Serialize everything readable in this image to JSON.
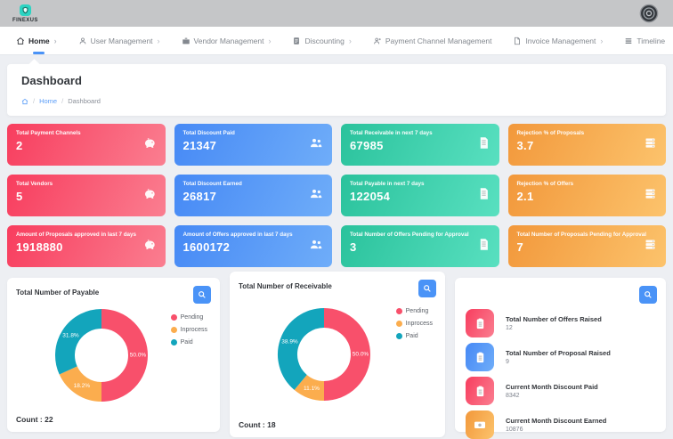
{
  "topbar": {
    "logo_text": "FINEXUS"
  },
  "nav": {
    "items": [
      {
        "label": "Home",
        "active": true
      },
      {
        "label": "User Management"
      },
      {
        "label": "Vendor Management"
      },
      {
        "label": "Discounting"
      },
      {
        "label": "Payment Channel Management"
      },
      {
        "label": "Invoice Management"
      },
      {
        "label": "Timeline"
      }
    ]
  },
  "page": {
    "title": "Dashboard",
    "breadcrumb_home": "Home",
    "breadcrumb_current": "Dashboard"
  },
  "stat_cards": [
    {
      "title": "Total Payment Channels",
      "value": "2",
      "color": "pink",
      "icon": "piggy-bank-icon"
    },
    {
      "title": "Total Discount Paid",
      "value": "21347",
      "color": "blue",
      "icon": "users-icon"
    },
    {
      "title": "Total Receivable in next 7 days",
      "value": "67985",
      "color": "green",
      "icon": "file-invoice-icon"
    },
    {
      "title": "Rejection % of Proposals",
      "value": "3.7",
      "color": "orange",
      "icon": "server-list-icon"
    },
    {
      "title": "Total Vendors",
      "value": "5",
      "color": "pink",
      "icon": "piggy-bank-icon"
    },
    {
      "title": "Total Discount Earned",
      "value": "26817",
      "color": "blue",
      "icon": "users-icon"
    },
    {
      "title": "Total Payable in next 7 days",
      "value": "122054",
      "color": "green",
      "icon": "file-invoice-icon"
    },
    {
      "title": "Rejection % of Offers",
      "value": "2.1",
      "color": "orange",
      "icon": "server-list-icon"
    },
    {
      "title": "Amount of Proposals approved in last 7 days",
      "value": "1918880",
      "color": "pink",
      "icon": "piggy-bank-icon"
    },
    {
      "title": "Amount of Offers approved in last 7 days",
      "value": "1600172",
      "color": "blue",
      "icon": "users-icon"
    },
    {
      "title": "Total Number of Offers Pending for Approval",
      "value": "3",
      "color": "green",
      "icon": "file-invoice-icon"
    },
    {
      "title": "Total Number of Proposals Pending for Approval",
      "value": "7",
      "color": "orange",
      "icon": "server-list-icon"
    }
  ],
  "chart_data": [
    {
      "type": "pie",
      "donut": true,
      "title": "Total Number of Payable",
      "labels": [
        "Pending",
        "Inprocess",
        "Paid"
      ],
      "values": [
        11,
        4,
        7
      ],
      "pct": [
        50.0,
        18.2,
        31.8
      ],
      "pct_labels": [
        "50.0%",
        "18.2%",
        "31.8%"
      ],
      "colors": [
        "#F8506B",
        "#FBAD4E",
        "#13A5BC"
      ],
      "count": 22,
      "count_label": "Count : 22",
      "legend_position": "right"
    },
    {
      "type": "pie",
      "donut": true,
      "title": "Total Number of Receivable",
      "labels": [
        "Pending",
        "Inprocess",
        "Paid"
      ],
      "values": [
        9,
        2,
        7
      ],
      "pct": [
        50.0,
        11.1,
        38.9
      ],
      "pct_labels": [
        "50.0%",
        "11.1%",
        "38.9%"
      ],
      "colors": [
        "#F8506B",
        "#FBAD4E",
        "#13A5BC"
      ],
      "count": 18,
      "count_label": "Count : 18",
      "legend_position": "right"
    }
  ],
  "summary_panel": {
    "items": [
      {
        "title": "Total Number of Offers Raised",
        "value": "12",
        "color": "pink",
        "icon": "clipboard-icon"
      },
      {
        "title": "Total Number of Proposal Raised",
        "value": "9",
        "color": "blue",
        "icon": "clipboard-icon"
      },
      {
        "title": "Current Month Discount Paid",
        "value": "8342",
        "color": "pink",
        "icon": "clipboard-icon"
      },
      {
        "title": "Current Month Discount Earned",
        "value": "10876",
        "color": "orange",
        "icon": "banknote-icon"
      }
    ]
  },
  "colors": {
    "card_pink": "#F83D5E",
    "card_blue": "#4689F5",
    "card_green": "#2AC29C",
    "card_orange": "#F2983B",
    "accent_blue": "#4A93F7",
    "pending": "#F8506B",
    "inprocess": "#FBAD4E",
    "paid": "#13A5BC",
    "topbar_gray": "#C5C6C8",
    "logo_teal": "#2CD4C2"
  }
}
